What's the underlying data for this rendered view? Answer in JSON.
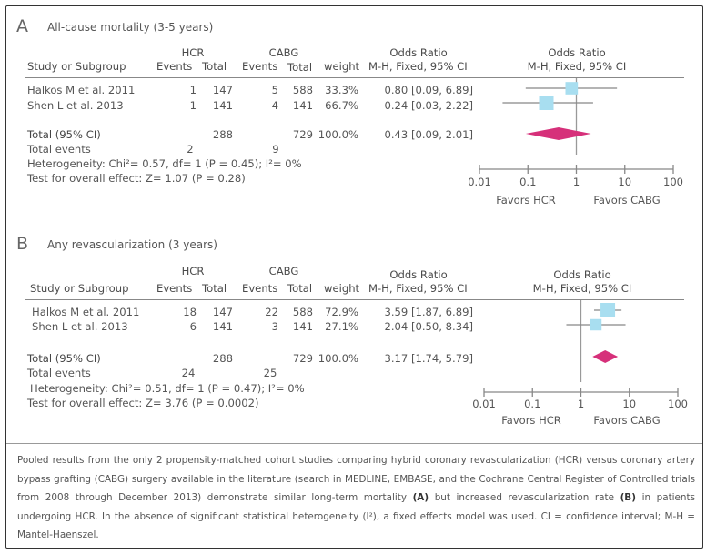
{
  "chart_data": [
    {
      "type": "forest",
      "panel_letter": "A",
      "title": "All-cause mortality (3-5 years)",
      "columns": {
        "study": "Study or Subgroup",
        "group1": "HCR",
        "group2": "CABG",
        "events": "Events",
        "total": "Total",
        "weight": "weight",
        "or_title": "Odds Ratio",
        "or_method": "M-H, Fixed, 95% CI",
        "plot_title": "Odds Ratio",
        "plot_method": "M-H, Fixed, 95% CI"
      },
      "studies": [
        {
          "name": "Halkos M et al. 2011",
          "hcr_events": "1",
          "hcr_total": "147",
          "cabg_events": "5",
          "cabg_total": "588",
          "weight": "33.3%",
          "or_text": "0.80 [0.09, 6.89]",
          "or": 0.8,
          "lo": 0.09,
          "hi": 6.89,
          "weight_pct": 33.3
        },
        {
          "name": "Shen L et al. 2013",
          "hcr_events": "1",
          "hcr_total": "141",
          "cabg_events": "4",
          "cabg_total": "141",
          "weight": "66.7%",
          "or_text": "0.24 [0.03, 2.22]",
          "or": 0.24,
          "lo": 0.03,
          "hi": 2.22,
          "weight_pct": 66.7
        }
      ],
      "total": {
        "label": "Total (95% CI)",
        "hcr_total": "288",
        "cabg_total": "729",
        "weight": "100.0%",
        "or_text": "0.43 [0.09, 2.01]",
        "or": 0.43,
        "lo": 0.09,
        "hi": 2.01
      },
      "total_events": {
        "label": "Total events",
        "hcr": "2",
        "cabg": "9"
      },
      "heterogeneity": "Heterogeneity: Chi²= 0.57, df= 1 (P = 0.45); I²= 0%",
      "overall_effect": "Test for overall effect: Z= 1.07 (P = 0.28)",
      "axis": {
        "scale": "log",
        "range": [
          0.01,
          100
        ],
        "ticks": [
          0.01,
          0.1,
          1,
          10,
          100
        ],
        "tick_labels": [
          "0.01",
          "0.1",
          "1",
          "10",
          "100"
        ]
      },
      "favors_left": "Favors HCR",
      "favors_right": "Favors CABG"
    },
    {
      "type": "forest",
      "panel_letter": "B",
      "title": "Any revascularization (3 years)",
      "columns": {
        "study": "Study or Subgroup",
        "group1": "HCR",
        "group2": "CABG",
        "events": "Events",
        "total": "Total",
        "weight": "weight",
        "or_title": "Odds Ratio",
        "or_method": "M-H, Fixed, 95% CI",
        "plot_title": "Odds Ratio",
        "plot_method": "M-H, Fixed, 95% CI"
      },
      "studies": [
        {
          "name": "Halkos M et al. 2011",
          "hcr_events": "18",
          "hcr_total": "147",
          "cabg_events": "22",
          "cabg_total": "588",
          "weight": "72.9%",
          "or_text": "3.59 [1.87, 6.89]",
          "or": 3.59,
          "lo": 1.87,
          "hi": 6.89,
          "weight_pct": 72.9
        },
        {
          "name": "Shen L et al. 2013",
          "hcr_events": "6",
          "hcr_total": "141",
          "cabg_events": "3",
          "cabg_total": "141",
          "weight": "27.1%",
          "or_text": "2.04 [0.50, 8.34]",
          "or": 2.04,
          "lo": 0.5,
          "hi": 8.34,
          "weight_pct": 27.1
        }
      ],
      "total": {
        "label": "Total (95% CI)",
        "hcr_total": "288",
        "cabg_total": "729",
        "weight": "100.0%",
        "or_text": "3.17 [1.74, 5.79]",
        "or": 3.17,
        "lo": 1.74,
        "hi": 5.79
      },
      "total_events": {
        "label": "Total events",
        "hcr": "24",
        "cabg": "25"
      },
      "heterogeneity": "Heterogeneity: Chi²= 0.51, df= 1 (P = 0.47); I²= 0%",
      "overall_effect": "Test for overall effect: Z= 3.76 (P = 0.0002)",
      "axis": {
        "scale": "log",
        "range": [
          0.01,
          100
        ],
        "ticks": [
          0.01,
          0.1,
          1,
          10,
          100
        ],
        "tick_labels": [
          "0.01",
          "0.1",
          "1",
          "10",
          "100"
        ]
      },
      "favors_left": "Favors HCR",
      "favors_right": "Favors CABG"
    }
  ],
  "colors": {
    "study_box": "#a8def0",
    "diamond": "#d6307a",
    "lines": "#888888"
  },
  "caption": {
    "part1": "Pooled results from the only 2 propensity-matched cohort studies comparing hybrid coronary revascularization (HCR) versus coronary artery bypass grafting (CABG) surgery available in the literature (search in MEDLINE, EMBASE, and the Cochrane Central Register of Controlled trials from 2008 through December 2013) demonstrate similar long-term mortality ",
    "bold_a": "(A)",
    "part2": " but increased revascularization rate ",
    "bold_b": "(B)",
    "part3": " in patients undergoing HCR. In the absence of significant statistical heterogeneity (I²), a fixed effects model was used. CI = confidence interval; M-H = Mantel-Haenszel."
  }
}
